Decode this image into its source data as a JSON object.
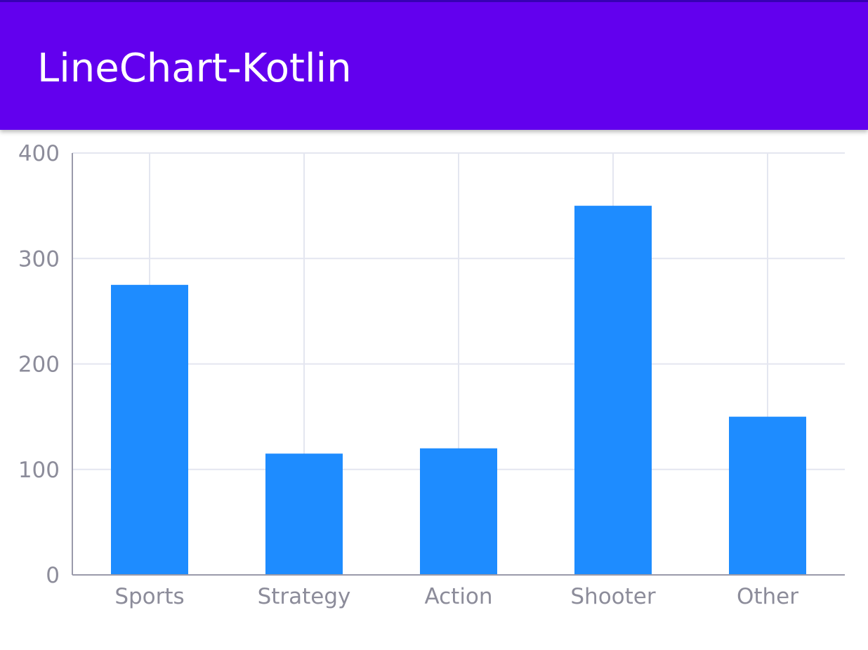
{
  "app_bar": {
    "title": "LineChart-Kotlin"
  },
  "colors": {
    "app_bar": "#6200ee",
    "bar": "#1e8cff",
    "grid": "#e4e6f0",
    "axis": "#9a9aaa",
    "tick_label": "#8c8c9a"
  },
  "chart_data": {
    "type": "bar",
    "categories": [
      "Sports",
      "Strategy",
      "Action",
      "Shooter",
      "Other"
    ],
    "values": [
      275,
      115,
      120,
      350,
      150
    ],
    "ylim": [
      0,
      400
    ],
    "yticks": [
      0,
      100,
      200,
      300,
      400
    ],
    "ytick_labels": [
      "0",
      "100",
      "200",
      "300",
      "400"
    ],
    "grid": true,
    "legend": false
  }
}
